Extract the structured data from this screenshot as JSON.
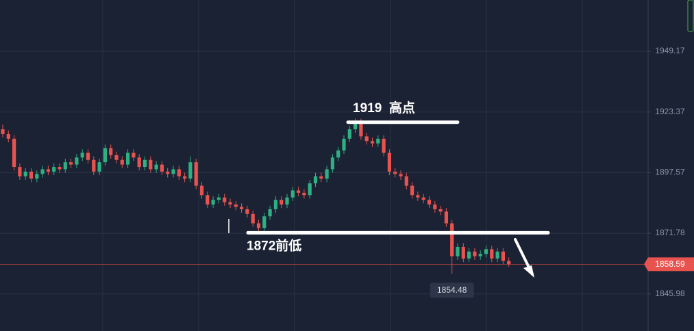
{
  "chart_data": {
    "type": "candlestick",
    "up_color": "#2fb083",
    "down_color": "#e9534f",
    "ylim": [
      1830.2,
      1971.0
    ],
    "yticks": [
      1949.17,
      1923.37,
      1897.57,
      1871.78,
      1845.98
    ],
    "grid": true,
    "current_price": 1858.59,
    "low_label": 1854.48,
    "annotations": [
      {
        "text": "1919  高点",
        "value": 1919
      },
      {
        "text": "1872前低",
        "value": 1872
      }
    ],
    "candles": [
      [
        1916,
        1918,
        1912.5,
        1914
      ],
      [
        1914,
        1915.5,
        1910.5,
        1912
      ],
      [
        1912,
        1913.5,
        1898.5,
        1900
      ],
      [
        1900,
        1901.5,
        1894.5,
        1896
      ],
      [
        1896,
        1899.5,
        1894.5,
        1898
      ],
      [
        1898,
        1899.5,
        1893.5,
        1895
      ],
      [
        1895,
        1898.5,
        1893.5,
        1897
      ],
      [
        1897,
        1900.5,
        1895.5,
        1899
      ],
      [
        1899,
        1900.5,
        1896.5,
        1898
      ],
      [
        1898,
        1901.5,
        1896.5,
        1900
      ],
      [
        1900,
        1901.5,
        1897.5,
        1899
      ],
      [
        1899,
        1903.5,
        1897.5,
        1902
      ],
      [
        1902,
        1903.5,
        1899.5,
        1901
      ],
      [
        1901,
        1905.5,
        1899.5,
        1904
      ],
      [
        1904,
        1907.5,
        1902.5,
        1906
      ],
      [
        1906,
        1907.5,
        1901.5,
        1903
      ],
      [
        1903,
        1904.5,
        1896.5,
        1898
      ],
      [
        1898,
        1903.5,
        1896.5,
        1902
      ],
      [
        1902,
        1909.5,
        1900.5,
        1908
      ],
      [
        1908,
        1909.5,
        1903.5,
        1905
      ],
      [
        1905,
        1906.5,
        1901.5,
        1903
      ],
      [
        1903,
        1904.5,
        1899.5,
        1901
      ],
      [
        1901,
        1907.5,
        1899.5,
        1906
      ],
      [
        1906,
        1907.5,
        1902.5,
        1904
      ],
      [
        1904,
        1905.5,
        1898.5,
        1900
      ],
      [
        1900,
        1904.5,
        1898.5,
        1903
      ],
      [
        1903,
        1904.5,
        1897.5,
        1899
      ],
      [
        1899,
        1902.5,
        1897.5,
        1901
      ],
      [
        1901,
        1902.5,
        1896.5,
        1898
      ],
      [
        1898,
        1899.5,
        1895.5,
        1897
      ],
      [
        1897,
        1900.5,
        1895.5,
        1899
      ],
      [
        1899,
        1900.5,
        1894.5,
        1896
      ],
      [
        1896,
        1897.5,
        1893.5,
        1895
      ],
      [
        1895,
        1904.5,
        1893.5,
        1902
      ],
      [
        1902,
        1903.5,
        1890.5,
        1892
      ],
      [
        1892,
        1893.5,
        1886.5,
        1888
      ],
      [
        1888,
        1889.5,
        1882.5,
        1884
      ],
      [
        1884,
        1887.5,
        1882.5,
        1886
      ],
      [
        1886,
        1888.5,
        1884.5,
        1887
      ],
      [
        1887,
        1888.5,
        1883.5,
        1885
      ],
      [
        1885,
        1886.5,
        1882.5,
        1884
      ],
      [
        1884,
        1885.5,
        1881.5,
        1883
      ],
      [
        1883,
        1884.5,
        1880.5,
        1882
      ],
      [
        1882,
        1883.5,
        1878.5,
        1880
      ],
      [
        1880,
        1881.5,
        1874.5,
        1876
      ],
      [
        1876,
        1877.5,
        1872,
        1874
      ],
      [
        1874,
        1880.5,
        1872.5,
        1879
      ],
      [
        1879,
        1883.5,
        1877.5,
        1882
      ],
      [
        1882,
        1887.5,
        1880.5,
        1886
      ],
      [
        1886,
        1887.5,
        1882.5,
        1884
      ],
      [
        1884,
        1888.5,
        1882.5,
        1887
      ],
      [
        1887,
        1891.5,
        1885.5,
        1890
      ],
      [
        1890,
        1891.5,
        1887.5,
        1889
      ],
      [
        1889,
        1890.5,
        1886.5,
        1888
      ],
      [
        1888,
        1894.5,
        1886.5,
        1893
      ],
      [
        1893,
        1897.5,
        1891.5,
        1896
      ],
      [
        1896,
        1897.5,
        1893.5,
        1895
      ],
      [
        1895,
        1900.5,
        1893.5,
        1899
      ],
      [
        1899,
        1905.5,
        1897.5,
        1904
      ],
      [
        1904,
        1908.5,
        1902.5,
        1907
      ],
      [
        1907,
        1913.5,
        1905.5,
        1912
      ],
      [
        1912,
        1917.5,
        1910.5,
        1916
      ],
      [
        1916,
        1920.5,
        1914.5,
        1919
      ],
      [
        1919,
        1920.5,
        1911.5,
        1913
      ],
      [
        1913,
        1914.5,
        1909.5,
        1911
      ],
      [
        1911,
        1912.5,
        1908.5,
        1910
      ],
      [
        1910,
        1913.5,
        1908.5,
        1912
      ],
      [
        1912,
        1913.5,
        1904.5,
        1906
      ],
      [
        1906,
        1907.5,
        1896.5,
        1898
      ],
      [
        1898,
        1899.5,
        1895.5,
        1897
      ],
      [
        1897,
        1898.5,
        1894.5,
        1896
      ],
      [
        1896,
        1897.5,
        1890.5,
        1892
      ],
      [
        1892,
        1893.5,
        1886.5,
        1888
      ],
      [
        1888,
        1889.5,
        1885.5,
        1887
      ],
      [
        1887,
        1888.5,
        1884.5,
        1886
      ],
      [
        1886,
        1887.5,
        1882.5,
        1884
      ],
      [
        1884,
        1885.5,
        1880.5,
        1882
      ],
      [
        1882,
        1883.5,
        1879.5,
        1881
      ],
      [
        1881,
        1882.5,
        1874.5,
        1876
      ],
      [
        1876,
        1877.5,
        1854.48,
        1862
      ],
      [
        1862,
        1867.5,
        1860.5,
        1866
      ],
      [
        1866,
        1867.5,
        1859.5,
        1861
      ],
      [
        1861,
        1865.5,
        1859.5,
        1864
      ],
      [
        1864,
        1865.5,
        1860.5,
        1862
      ],
      [
        1862,
        1864.5,
        1860.5,
        1863
      ],
      [
        1863,
        1866.5,
        1861.5,
        1865
      ],
      [
        1865,
        1866.5,
        1859.5,
        1861
      ],
      [
        1861,
        1865.5,
        1859.5,
        1864
      ],
      [
        1864,
        1865.5,
        1858.5,
        1860
      ],
      [
        1860,
        1861.5,
        1857.5,
        1858.59
      ]
    ]
  }
}
